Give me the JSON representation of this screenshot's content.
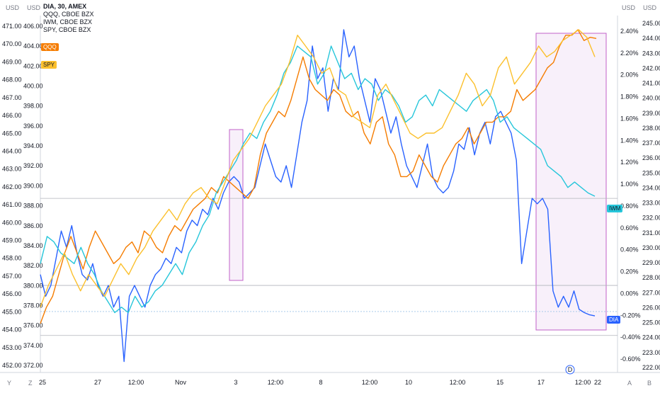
{
  "legend": {
    "main": "DIA, 30, AMEX",
    "series": [
      "QQQ, CBOE BZX",
      "IWM, CBOE BZX",
      "SPY, CBOE BZX"
    ]
  },
  "axis_labels": {
    "left_outer_unit": "USD",
    "left_inner_unit": "USD",
    "right_inner_unit": "USD",
    "right_outer_unit": "USD",
    "bottom_left_icons": [
      "Y",
      "Z"
    ],
    "bottom_right_icons": [
      "A",
      "B"
    ],
    "event_marker": "D"
  },
  "badges": {
    "qqq": "QQQ",
    "spy": "SPY",
    "iwm": "IWM",
    "dia": "DIA"
  },
  "colors": {
    "dia": "#2962ff",
    "qqq": "#f57c00",
    "iwm": "#26c6da",
    "spy": "#fbc02d",
    "highlight_fill": "#f3e3f6",
    "highlight_stroke": "#c060c8",
    "grid": "#e8e8e8"
  },
  "chart_data": {
    "type": "line",
    "x_ticks": [
      "25",
      "27",
      "12:00",
      "Nov",
      "3",
      "12:00",
      "8",
      "12:00",
      "10",
      "12:00",
      "15",
      "17",
      "12:00",
      "22"
    ],
    "left_outer_axis": {
      "ticks": [
        "471.00",
        "470.00",
        "469.00",
        "468.00",
        "467.00",
        "466.00",
        "465.00",
        "464.00",
        "463.00",
        "462.00",
        "461.00",
        "460.00",
        "459.00",
        "458.00",
        "457.00",
        "456.00",
        "455.00",
        "454.00",
        "453.00",
        "452.00"
      ],
      "range": [
        451.6,
        471.3
      ]
    },
    "left_inner_axis": {
      "ticks": [
        "406.00",
        "404.00",
        "402.00",
        "400.00",
        "398.00",
        "396.00",
        "394.00",
        "392.00",
        "390.00",
        "388.00",
        "386.00",
        "384.00",
        "382.00",
        "380.00",
        "378.00",
        "376.00",
        "374.00",
        "372.00"
      ]
    },
    "right_inner_axis": {
      "ticks": [
        "2.40%",
        "2.20%",
        "2.00%",
        "1.80%",
        "1.60%",
        "1.40%",
        "1.20%",
        "1.00%",
        "0.80%",
        "0.60%",
        "0.40%",
        "0.20%",
        "0.00%",
        "-0.20%",
        "-0.40%",
        "-0.60%"
      ],
      "range_pct": [
        -0.8,
        2.48
      ]
    },
    "right_outer_axis": {
      "ticks": [
        "245.00",
        "244.00",
        "243.00",
        "242.00",
        "241.00",
        "240.00",
        "239.00",
        "238.00",
        "237.00",
        "236.00",
        "235.00",
        "234.00",
        "233.00",
        "232.00",
        "231.00",
        "230.00",
        "229.00",
        "228.00",
        "227.00",
        "226.00",
        "225.00",
        "224.00",
        "223.00",
        "222.00"
      ]
    },
    "reference_lines_pct": [
      0.8,
      0.0,
      -0.24,
      -0.46
    ],
    "series": [
      {
        "name": "DIA",
        "key": "dia",
        "values": [
          0.1,
          -0.1,
          0.0,
          0.25,
          0.5,
          0.35,
          0.55,
          0.3,
          0.1,
          0.05,
          0.2,
          0.0,
          -0.1,
          0.0,
          -0.2,
          -0.1,
          -0.7,
          -0.1,
          0.0,
          -0.1,
          -0.2,
          0.0,
          0.1,
          0.15,
          0.25,
          0.2,
          0.35,
          0.3,
          0.5,
          0.6,
          0.55,
          0.7,
          0.65,
          0.8,
          0.7,
          0.85,
          0.95,
          1.0,
          0.95,
          0.8,
          0.85,
          0.9,
          1.1,
          1.3,
          1.15,
          1.0,
          0.95,
          1.1,
          0.9,
          1.2,
          1.5,
          1.7,
          2.2,
          1.9,
          2.0,
          1.6,
          1.9,
          1.8,
          2.35,
          2.1,
          2.2,
          1.9,
          1.7,
          1.5,
          1.9,
          1.8,
          1.6,
          1.4,
          1.55,
          1.3,
          1.1,
          1.0,
          0.9,
          1.1,
          1.3,
          1.0,
          0.9,
          0.85,
          0.9,
          1.05,
          1.3,
          1.25,
          1.45,
          1.2,
          1.4,
          1.5,
          1.3,
          1.55,
          1.6,
          1.5,
          1.4,
          1.15,
          0.2,
          0.5,
          0.8,
          0.75,
          0.8,
          0.7,
          -0.05,
          -0.2,
          -0.1,
          -0.2,
          -0.05,
          -0.22,
          -0.25,
          -0.27,
          -0.28
        ]
      },
      {
        "name": "QQQ",
        "key": "qqq",
        "values": [
          -0.35,
          -0.2,
          -0.1,
          0.1,
          0.3,
          0.45,
          0.3,
          0.15,
          0.35,
          0.5,
          0.4,
          0.3,
          0.2,
          0.25,
          0.35,
          0.4,
          0.3,
          0.5,
          0.45,
          0.35,
          0.3,
          0.45,
          0.55,
          0.5,
          0.6,
          0.7,
          0.75,
          0.8,
          0.9,
          0.85,
          1.0,
          0.95,
          0.9,
          0.85,
          0.8,
          0.9,
          1.2,
          1.4,
          1.5,
          1.6,
          1.55,
          1.7,
          1.9,
          2.1,
          1.9,
          1.8,
          1.75,
          1.7,
          1.8,
          1.75,
          1.6,
          1.55,
          1.6,
          1.4,
          1.3,
          1.5,
          1.55,
          1.3,
          1.2,
          1.0,
          1.0,
          1.05,
          1.2,
          1.1,
          1.0,
          0.95,
          1.1,
          1.2,
          1.3,
          1.35,
          1.45,
          1.3,
          1.4,
          1.5,
          1.5,
          1.55,
          1.55,
          1.6,
          1.8,
          1.7,
          1.75,
          1.8,
          1.9,
          2.0,
          2.05,
          2.2,
          2.3,
          2.3,
          2.35,
          2.25,
          2.28,
          2.27
        ]
      },
      {
        "name": "IWM",
        "key": "iwm",
        "values": [
          0.2,
          0.45,
          0.4,
          0.3,
          0.25,
          0.2,
          0.35,
          0.2,
          0.1,
          -0.05,
          -0.15,
          -0.25,
          -0.2,
          -0.25,
          -0.1,
          -0.2,
          -0.15,
          -0.05,
          0.0,
          0.1,
          0.2,
          0.1,
          0.3,
          0.4,
          0.55,
          0.65,
          0.85,
          0.95,
          1.05,
          1.15,
          1.3,
          1.4,
          1.35,
          1.5,
          1.6,
          1.75,
          1.95,
          2.05,
          2.2,
          2.15,
          2.1,
          1.85,
          1.95,
          2.2,
          2.05,
          1.9,
          1.95,
          1.8,
          1.9,
          1.85,
          1.7,
          1.8,
          1.75,
          1.65,
          1.5,
          1.55,
          1.7,
          1.75,
          1.65,
          1.8,
          1.75,
          1.7,
          1.65,
          1.6,
          1.7,
          1.75,
          1.8,
          1.7,
          1.5,
          1.55,
          1.45,
          1.4,
          1.35,
          1.3,
          1.25,
          1.1,
          1.05,
          1.0,
          0.9,
          0.95,
          0.9,
          0.85,
          0.82
        ]
      },
      {
        "name": "SPY",
        "key": "spy",
        "values": [
          -0.2,
          0.0,
          0.15,
          0.3,
          0.1,
          -0.05,
          0.1,
          0.0,
          -0.1,
          0.05,
          0.2,
          0.1,
          0.25,
          0.35,
          0.5,
          0.6,
          0.7,
          0.6,
          0.75,
          0.85,
          0.9,
          0.8,
          0.75,
          0.95,
          1.15,
          1.25,
          1.35,
          1.5,
          1.65,
          1.75,
          1.85,
          2.05,
          2.3,
          2.2,
          2.1,
          1.95,
          2.0,
          1.8,
          1.75,
          1.55,
          1.5,
          1.45,
          1.75,
          1.85,
          1.7,
          1.55,
          1.4,
          1.35,
          1.4,
          1.4,
          1.45,
          1.6,
          1.75,
          1.95,
          1.85,
          1.65,
          1.75,
          2.0,
          2.1,
          1.85,
          1.95,
          2.05,
          2.2,
          2.1,
          2.15,
          2.25,
          2.3,
          2.35,
          2.28,
          2.1
        ]
      }
    ],
    "highlight_boxes": [
      "3 Nov window",
      "17–22 window"
    ]
  }
}
